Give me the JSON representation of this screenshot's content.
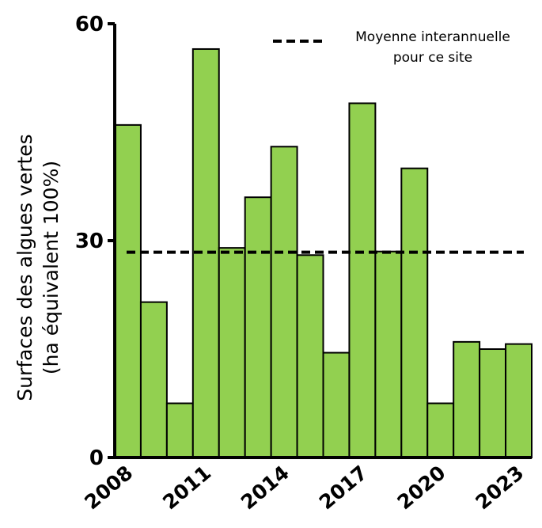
{
  "chart_data": {
    "type": "bar",
    "categories": [
      "2008",
      "2009",
      "2010",
      "2011",
      "2012",
      "2013",
      "2014",
      "2015",
      "2016",
      "2017",
      "2018",
      "2019",
      "2020",
      "2021",
      "2022",
      "2023"
    ],
    "values": [
      46,
      21.5,
      7.5,
      56.5,
      29,
      36,
      43,
      28,
      14.5,
      49,
      28.5,
      40,
      7.5,
      16,
      15,
      15.7
    ],
    "x_tick_labels": [
      "2008",
      "2011",
      "2014",
      "2017",
      "2020",
      "2023"
    ],
    "ylabel_line1": "Surfaces des algues vertes",
    "ylabel_line2": "(ha équivalent 100%)",
    "yticks": [
      0,
      30,
      60
    ],
    "ylim": [
      0,
      60
    ],
    "mean_value": 28.4,
    "legend": {
      "line1": "Moyenne interannuelle",
      "line2": "pour ce site",
      "placement": "top-right"
    },
    "bar_color": "#92d050",
    "bar_edge_color": "#000000",
    "grid": false
  }
}
